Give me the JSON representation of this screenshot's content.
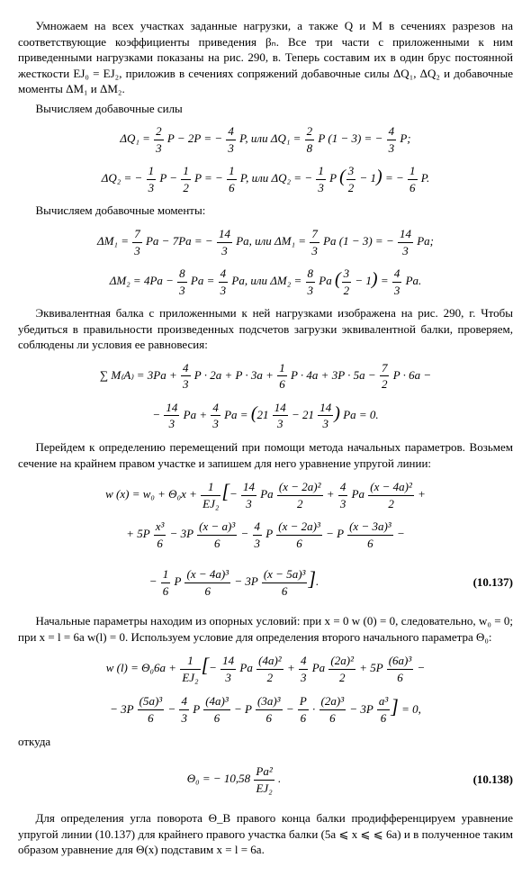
{
  "p1": "Умножаем на всех участках заданные нагрузки, а также Q и M в сечениях разрезов на соответствующие коэффициенты приведения βₙ. Все три части с приложенными к ним приведенными нагрузками показаны на рис. 290, в. Теперь составим их в один брус постоянной жесткости EJ₀ = EJ₂, приложив в сечениях сопряжений добавочные силы ΔQ₁, ΔQ₂ и добавочные моменты ΔM₁ и ΔM₂.",
  "p2": "Вычисляем добавочные силы",
  "p3": "Вычисляем добавочные моменты:",
  "p4": "Эквивалентная балка с приложенными к ней нагрузками изображена на рис. 290, г. Чтобы убедиться в правильности произведенных подсчетов загрузки эквивалентной балки, проверяем, соблюдены ли условия ее равновесия:",
  "p5": "Перейдем к определению перемещений при помощи метода начальных параметров. Возьмем сечение на крайнем правом участке и запишем для него уравнение упругой линии:",
  "p6": "Начальные параметры находим из опорных условий: при x = 0  w (0) = 0, следовательно, w₀ = 0; при x = l = 6a  w(l) = 0. Используем условие для определения второго начального параметра Θ₀:",
  "p7": "откуда",
  "p8": "Для определения угла поворота Θ_B правого конца балки продифференцируем уравнение упругой линии (10.137) для крайнего правого участка балки (5a ⩽ x ⩽ ⩽ 6a) и в полученное таким образом уравнение для Θ(x) подставим x = l = 6a.",
  "eq1": "ΔQ₁ = ",
  "eq1b": " P − 2P = − ",
  "eq1c": " P,   или   ΔQ₁ = ",
  "eq1d": " P (1 − 3) = − ",
  "eq1e": " P;",
  "eq2": "ΔQ₂ = − ",
  "eq2b": " P − ",
  "eq2c": " P = − ",
  "eq2d": " P,   или   ΔQ₂ = − ",
  "eq2e": " P ",
  "eq2f": " = − ",
  "eq2g": " P.",
  "eq3": "ΔM₁ = ",
  "eq3b": " Pa − 7Pa = − ",
  "eq3c": " Pa,   или   ΔM₁ = ",
  "eq3d": " Pa (1 − 3) = − ",
  "eq3e": " Pa;",
  "eq4": "ΔM₂ = 4Pa − ",
  "eq4b": " Pa = ",
  "eq4c": " Pa,   или   ΔM₂ = ",
  "eq4d": " Pa ",
  "eq4e": " = ",
  "eq4f": " Pa.",
  "eq5a": "∑ M₍A₎ = 3Pa + ",
  "eq5b": " P · 2a + P · 3a + ",
  "eq5c": " P · 4a + 3P · 5a − ",
  "eq5d": " P · 6a −",
  "eq5e": "− ",
  "eq5f": " Pa + ",
  "eq5g": " Pa = ",
  "eq5h": " Pa = 0.",
  "eq6a": "w (x) = w₀ + Θ₀x + ",
  "eq6b": " Pa ",
  "eq6c": " + ",
  "eq6d": " Pa ",
  "eq6e": " +",
  "eq6f": "+ 5P ",
  "eq6g": " − 3P ",
  "eq6h": " − ",
  "eq6i": " P ",
  "eq6j": " − P ",
  "eq6k": " −",
  "eq6l": "− ",
  "eq6m": " P ",
  "eq6n": " − 3P ",
  "eq6o": ".",
  "eq7a": "w (l) = Θ₀6a + ",
  "eq7b": " Pa ",
  "eq7c": " + ",
  "eq7d": " Pa ",
  "eq7e": " + 5P ",
  "eq7f": " −",
  "eq7g": "− 3P ",
  "eq7h": " − ",
  "eq7i": " P ",
  "eq7j": " − P ",
  "eq7k": " − ",
  "eq7l": " · ",
  "eq7m": " − 3P ",
  "eq7n": " = 0,",
  "eq8": "Θ₀ = − 10,58 ",
  "eq8b": " .",
  "num137": "(10.137)",
  "num138": "(10.138)",
  "f_2_3_n": "2",
  "f_2_3_d": "3",
  "f_4_3_n": "4",
  "f_4_3_d": "3",
  "f_2_8_n": "2",
  "f_2_8_d": "8",
  "f_1_3_n": "1",
  "f_1_3_d": "3",
  "f_1_2_n": "1",
  "f_1_2_d": "2",
  "f_1_6_n": "1",
  "f_1_6_d": "6",
  "f_7_3_n": "7",
  "f_7_3_d": "3",
  "f_14_3_n": "14",
  "f_14_3_d": "3",
  "f_8_3_n": "8",
  "f_8_3_d": "3",
  "f_7_2_n": "7",
  "f_7_2_d": "2",
  "f_P_6_n": "P",
  "f_P_6_d": "6",
  "paren_3_2_n": "3",
  "paren_3_2_d": "2",
  "big21a": "21 ",
  "big21b": " − 21 ",
  "fEJ_n": "1",
  "fEJ_d": "EJ₂",
  "fx2a_n": "(x − 2a)²",
  "fx2a_d": "2",
  "fx4a_n": "(x − 4a)²",
  "fx4a_d": "2",
  "fx3_6_n": "x³",
  "fx3_6_d": "6",
  "fxa3_n": "(x − a)³",
  "fxa3_d": "6",
  "fx2a3_n": "(x − 2a)³",
  "fx2a3_d": "6",
  "fx3a3_n": "(x − 3a)³",
  "fx3a3_d": "6",
  "fx4a3_n": "(x − 4a)³",
  "fx4a3_d": "6",
  "fx5a3_n": "(x − 5a)³",
  "fx5a3_d": "6",
  "f4a2_n": "(4a)²",
  "f4a2_d": "2",
  "f2a2_n": "(2a)²",
  "f2a2_d": "2",
  "f6a3_n": "(6a)³",
  "f6a3_d": "6",
  "f5a3_n": "(5a)³",
  "f5a3_d": "6",
  "f4a3_n": "(4a)³",
  "f4a3_d": "6",
  "f3a3_n": "(3a)³",
  "f3a3_d": "6",
  "f2a3_n": "(2a)³",
  "f2a3_d": "6",
  "fa3_n": "a³",
  "fa3_d": "6",
  "fPa2_n": "Pa²",
  "fPa2_d": "EJ₂",
  "lbr": "[",
  "rbr": "]",
  "lp": "(",
  "rp": ")",
  "min1": " − 1"
}
